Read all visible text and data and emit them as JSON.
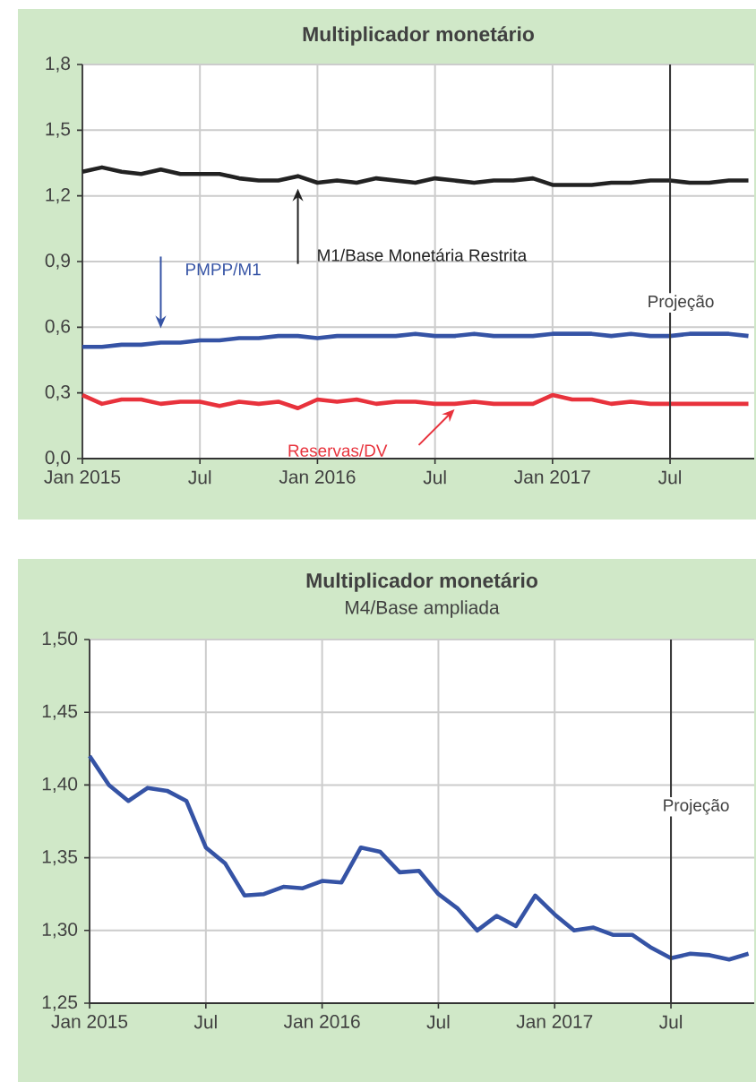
{
  "chart_data": [
    {
      "type": "line",
      "title": "Multiplicador monetário",
      "legend": false,
      "grid": true,
      "x": [
        "2015-01",
        "2015-02",
        "2015-03",
        "2015-04",
        "2015-05",
        "2015-06",
        "2015-07",
        "2015-08",
        "2015-09",
        "2015-10",
        "2015-11",
        "2015-12",
        "2016-01",
        "2016-02",
        "2016-03",
        "2016-04",
        "2016-05",
        "2016-06",
        "2016-07",
        "2016-08",
        "2016-09",
        "2016-10",
        "2016-11",
        "2016-12",
        "2017-01",
        "2017-02",
        "2017-03",
        "2017-04",
        "2017-05",
        "2017-06",
        "2017-07",
        "2017-08",
        "2017-09",
        "2017-10",
        "2017-11"
      ],
      "series": [
        {
          "name": "M1/Base Monetária Restrita",
          "color": "#222222",
          "values": [
            1.31,
            1.33,
            1.31,
            1.3,
            1.32,
            1.3,
            1.3,
            1.3,
            1.28,
            1.27,
            1.27,
            1.29,
            1.26,
            1.27,
            1.26,
            1.28,
            1.27,
            1.26,
            1.28,
            1.27,
            1.26,
            1.27,
            1.27,
            1.28,
            1.25,
            1.25,
            1.25,
            1.26,
            1.26,
            1.27,
            1.27,
            1.26,
            1.26,
            1.27,
            1.27
          ]
        },
        {
          "name": "PMPP/M1",
          "color": "#3553a5",
          "values": [
            0.51,
            0.51,
            0.52,
            0.52,
            0.53,
            0.53,
            0.54,
            0.54,
            0.55,
            0.55,
            0.56,
            0.56,
            0.55,
            0.56,
            0.56,
            0.56,
            0.56,
            0.57,
            0.56,
            0.56,
            0.57,
            0.56,
            0.56,
            0.56,
            0.57,
            0.57,
            0.57,
            0.56,
            0.57,
            0.56,
            0.56,
            0.57,
            0.57,
            0.57,
            0.56
          ]
        },
        {
          "name": "Reservas/DV",
          "color": "#e8323c",
          "values": [
            0.29,
            0.25,
            0.27,
            0.27,
            0.25,
            0.26,
            0.26,
            0.24,
            0.26,
            0.25,
            0.26,
            0.23,
            0.27,
            0.26,
            0.27,
            0.25,
            0.26,
            0.26,
            0.25,
            0.25,
            0.26,
            0.25,
            0.25,
            0.25,
            0.29,
            0.27,
            0.27,
            0.25,
            0.26,
            0.25,
            0.25,
            0.25,
            0.25,
            0.25,
            0.25
          ]
        }
      ],
      "xlim": [
        "2015-01",
        "2017-11-10"
      ],
      "xticks": [
        {
          "value": "2015-01",
          "label": "Jan 2015"
        },
        {
          "value": "2015-07",
          "label": "Jul"
        },
        {
          "value": "2016-01",
          "label": "Jan 2016"
        },
        {
          "value": "2016-07",
          "label": "Jul"
        },
        {
          "value": "2017-01",
          "label": "Jan 2017"
        },
        {
          "value": "2017-07",
          "label": "Jul"
        }
      ],
      "ylim": [
        0,
        1.8
      ],
      "yticks": [
        {
          "value": 0,
          "label": "0,0"
        },
        {
          "value": 0.3,
          "label": "0,3"
        },
        {
          "value": 0.6,
          "label": "0,6"
        },
        {
          "value": 0.9,
          "label": "0,9"
        },
        {
          "value": 1.2,
          "label": "1,2"
        },
        {
          "value": 1.5,
          "label": "1,5"
        },
        {
          "value": 1.8,
          "label": "1,8"
        }
      ],
      "ref_lines": [
        {
          "axis": "x",
          "value": "2017-07",
          "label": "Projeção",
          "color": "#333333"
        }
      ]
    },
    {
      "type": "line",
      "title": "Multiplicador monetário",
      "subtitle": "M4/Base ampliada",
      "legend": false,
      "grid": true,
      "x": [
        "2015-01",
        "2015-02",
        "2015-03",
        "2015-04",
        "2015-05",
        "2015-06",
        "2015-07",
        "2015-08",
        "2015-09",
        "2015-10",
        "2015-11",
        "2015-12",
        "2016-01",
        "2016-02",
        "2016-03",
        "2016-04",
        "2016-05",
        "2016-06",
        "2016-07",
        "2016-08",
        "2016-09",
        "2016-10",
        "2016-11",
        "2016-12",
        "2017-01",
        "2017-02",
        "2017-03",
        "2017-04",
        "2017-05",
        "2017-06",
        "2017-07",
        "2017-08",
        "2017-09",
        "2017-10",
        "2017-11"
      ],
      "series": [
        {
          "color": "#3553a5",
          "values": [
            1.42,
            1.4,
            1.389,
            1.398,
            1.396,
            1.389,
            1.357,
            1.346,
            1.324,
            1.325,
            1.33,
            1.329,
            1.334,
            1.333,
            1.357,
            1.354,
            1.34,
            1.341,
            1.325,
            1.315,
            1.3,
            1.31,
            1.303,
            1.324,
            1.311,
            1.3,
            1.302,
            1.297,
            1.297,
            1.288,
            1.281,
            1.284,
            1.283,
            1.28,
            1.284
          ]
        }
      ],
      "xlim": [
        "2015-01",
        "2017-11-10"
      ],
      "xticks": [
        {
          "value": "2015-01",
          "label": "Jan 2015"
        },
        {
          "value": "2015-07",
          "label": "Jul"
        },
        {
          "value": "2016-01",
          "label": "Jan 2016"
        },
        {
          "value": "2016-07",
          "label": "Jul"
        },
        {
          "value": "2017-01",
          "label": "Jan 2017"
        },
        {
          "value": "2017-07",
          "label": "Jul"
        }
      ],
      "ylim": [
        1.25,
        1.5
      ],
      "yticks": [
        {
          "value": 1.25,
          "label": "1,25"
        },
        {
          "value": 1.3,
          "label": "1,30"
        },
        {
          "value": 1.35,
          "label": "1,35"
        },
        {
          "value": 1.4,
          "label": "1,40"
        },
        {
          "value": 1.45,
          "label": "1,45"
        },
        {
          "value": 1.5,
          "label": "1,50"
        }
      ],
      "ref_lines": [
        {
          "axis": "x",
          "value": "2017-07",
          "label": "Projeção",
          "color": "#333333"
        }
      ]
    }
  ]
}
